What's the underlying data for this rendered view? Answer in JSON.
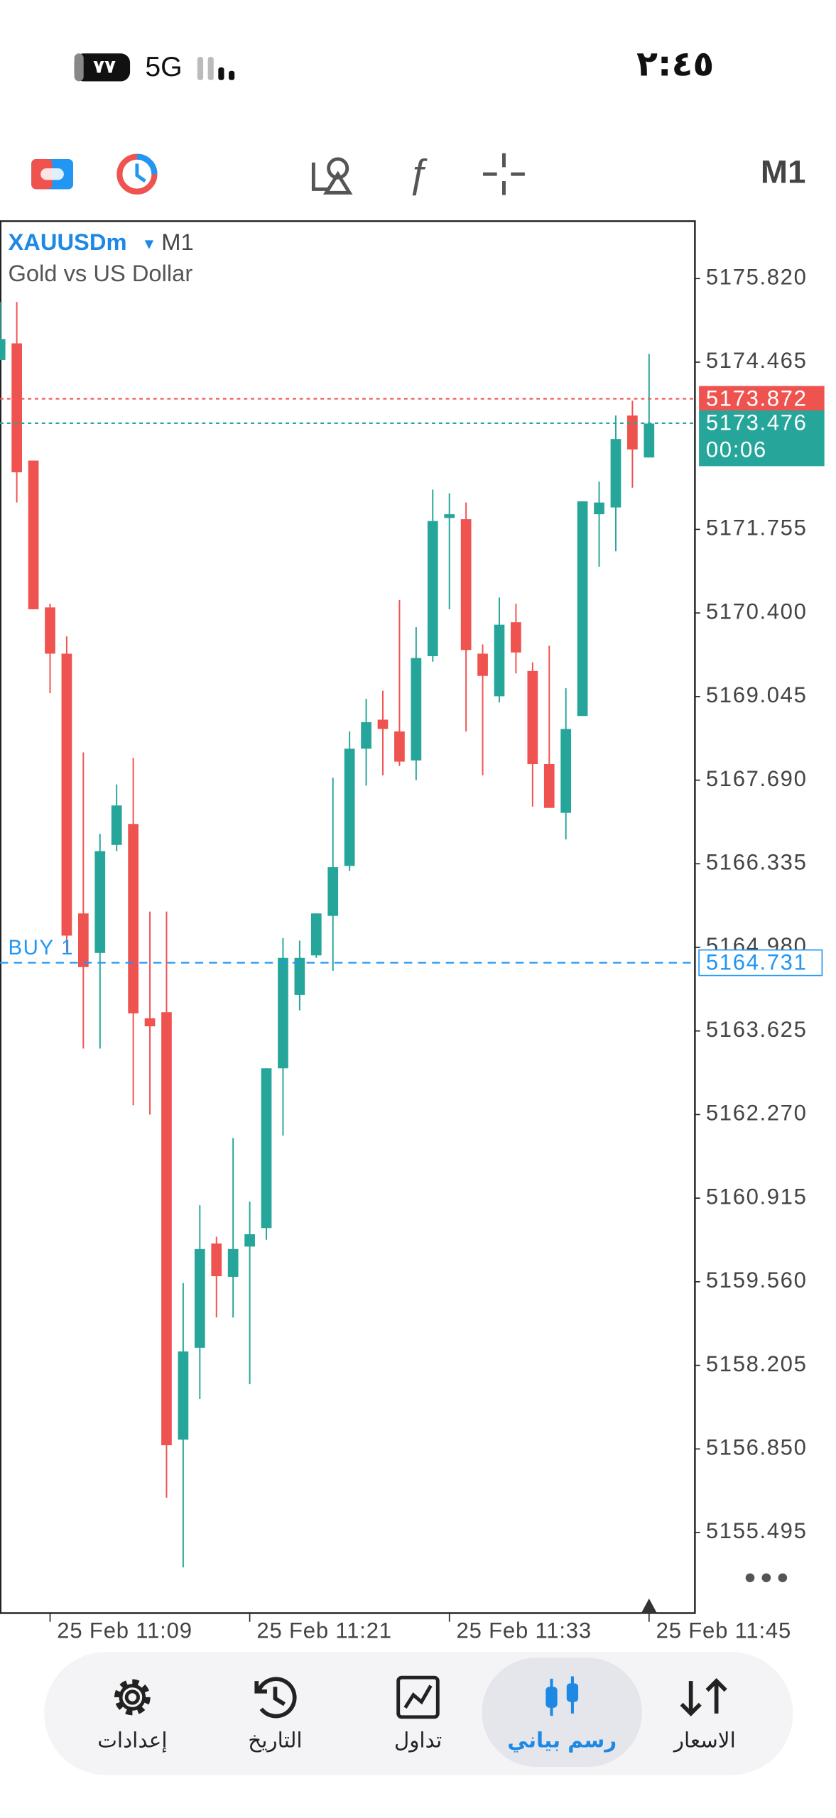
{
  "status_bar": {
    "time": "٢:٤٥",
    "battery": "٧٧",
    "network": "5G"
  },
  "toolbar": {
    "timeframe": "M1"
  },
  "chart_data": {
    "type": "candlestick",
    "symbol": "XAUUSDm",
    "timeframe": "M1",
    "description": "Gold vs US Dollar",
    "ylim": [
      5154.18,
      5176.76
    ],
    "yticks": [
      {
        "value": 5175.82,
        "label": "5175.820"
      },
      5174.465,
      5171.755,
      {
        "value": 5170.4,
        "label": "5170.400"
      },
      5169.045,
      {
        "value": 5167.69,
        "label": "5167.690"
      },
      5166.335,
      {
        "value": 5164.98,
        "label": "5164.980"
      },
      5163.625,
      {
        "value": 5162.27,
        "label": "5162.270"
      },
      5160.915,
      {
        "value": 5159.56,
        "label": "5159.560"
      },
      5158.205,
      {
        "value": 5156.85,
        "label": "5156.850"
      },
      5155.495
    ],
    "up_color": "#26a69a",
    "down_color": "#ef5350",
    "candles": {
      "open": [
        5174.5,
        5174.77,
        5172.87,
        5170.49,
        5169.74,
        5165.53,
        5164.89,
        5166.64,
        5166.98,
        5163.83,
        5163.93,
        5157.0,
        5158.49,
        5160.18,
        5159.64,
        5160.13,
        5160.43,
        5163.02,
        5164.21,
        5164.85,
        5165.49,
        5166.3,
        5168.2,
        5168.67,
        5168.48,
        5168.01,
        5169.7,
        5171.94,
        5171.92,
        5169.74,
        5169.05,
        5170.25,
        5169.46,
        5167.95,
        5167.16,
        5168.73,
        5172.0,
        5172.11,
        5173.6,
        5172.92
      ],
      "high": [
        5175.44,
        5175.44,
        5172.87,
        5170.55,
        5170.02,
        5168.14,
        5166.82,
        5167.62,
        5168.05,
        5165.56,
        5165.56,
        5159.54,
        5160.8,
        5160.29,
        5161.89,
        5160.86,
        5163.02,
        5165.13,
        5165.09,
        5165.53,
        5167.73,
        5168.48,
        5169.01,
        5169.14,
        5170.61,
        5170.17,
        5172.4,
        5172.34,
        5172.19,
        5169.89,
        5170.65,
        5170.55,
        5169.6,
        5169.87,
        5169.18,
        5172.21,
        5172.53,
        5173.6,
        5173.84,
        5174.6
      ],
      "low": [
        5174.5,
        5172.19,
        5170.46,
        5169.1,
        5164.91,
        5163.34,
        5163.34,
        5166.54,
        5162.42,
        5162.27,
        5156.06,
        5154.93,
        5157.66,
        5158.98,
        5158.98,
        5157.9,
        5160.24,
        5161.93,
        5163.96,
        5164.81,
        5164.6,
        5166.22,
        5167.6,
        5167.77,
        5167.92,
        5167.69,
        5169.61,
        5170.46,
        5168.48,
        5167.77,
        5168.95,
        5169.42,
        5167.26,
        5167.24,
        5166.73,
        5168.73,
        5171.15,
        5171.4,
        5172.43,
        5172.92
      ],
      "close": [
        5174.84,
        5172.68,
        5170.46,
        5169.74,
        5165.17,
        5164.66,
        5166.54,
        5167.28,
        5163.91,
        5163.7,
        5156.91,
        5158.43,
        5160.09,
        5159.65,
        5160.09,
        5160.33,
        5163.02,
        5164.81,
        5164.81,
        5165.53,
        5166.28,
        5168.2,
        5168.63,
        5168.52,
        5167.99,
        5169.67,
        5171.89,
        5172.0,
        5169.8,
        5169.38,
        5170.21,
        5169.76,
        5167.95,
        5167.24,
        5168.52,
        5172.21,
        5172.19,
        5173.22,
        5173.05,
        5173.47
      ]
    },
    "price_lines": [
      {
        "value": 5173.872,
        "color": "#ef5350"
      },
      {
        "value": 5173.476,
        "countdown": "00:06",
        "color": "#26a69a"
      },
      {
        "value": 5164.731,
        "order": "BUY 1",
        "color": "#2196f3"
      }
    ],
    "x_tick_labels": [
      "25 Feb 11:09",
      "25 Feb 11:21",
      "25 Feb 11:33",
      "25 Feb 11:45"
    ]
  },
  "nav": [
    {
      "label": "الاسعار"
    },
    {
      "label": "رسم بياني",
      "active": true
    },
    {
      "label": "تداول"
    },
    {
      "label": "التاريخ"
    },
    {
      "label": "إعدادات"
    }
  ]
}
